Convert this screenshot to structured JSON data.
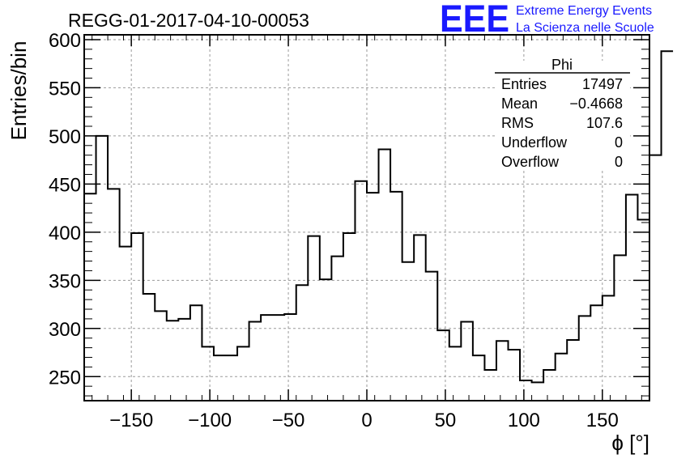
{
  "chart_data": {
    "type": "histogram",
    "title": "REGG-01-2017-04-10-00053",
    "xlabel": "ϕ [°]",
    "ylabel": "Entries/bin",
    "xlim": [
      -180,
      180
    ],
    "ylim": [
      225,
      605
    ],
    "xticks": [
      -150,
      -100,
      -50,
      0,
      50,
      100,
      150
    ],
    "yticks": [
      250,
      300,
      350,
      400,
      450,
      500,
      550,
      600
    ],
    "grid": true,
    "bin_width": 7.5,
    "bin_start": -180,
    "values": [
      440,
      500,
      445,
      385,
      399,
      336,
      318,
      308,
      310,
      324,
      281,
      272,
      272,
      281,
      307,
      314,
      314,
      315,
      345,
      396,
      351,
      375,
      399,
      453,
      441,
      486,
      442,
      369,
      397,
      359,
      298,
      281,
      307,
      272,
      257,
      287,
      278,
      246,
      244,
      257,
      274,
      288,
      313,
      324,
      334,
      376,
      439,
      413,
      480,
      588
    ]
  },
  "stats": {
    "title": "Phi",
    "rows": [
      {
        "label": "Entries",
        "value": "17497"
      },
      {
        "label": "Mean",
        "value": "−0.4668"
      },
      {
        "label": "RMS",
        "value": "107.6"
      },
      {
        "label": "Underflow",
        "value": "0"
      },
      {
        "label": "Overflow",
        "value": "0"
      }
    ]
  },
  "logo": {
    "mark": "EEE",
    "line1": "Extreme Energy Events",
    "line2": "La Scienza nelle Scuole",
    "color": "#1a1aff"
  },
  "colors": {
    "line": "#000000",
    "grid": "#9a9a9a"
  }
}
